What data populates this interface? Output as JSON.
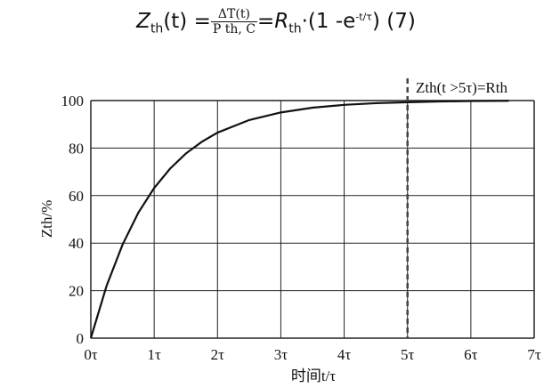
{
  "formula": {
    "lhs": "Z",
    "lhs_sub": "th",
    "lhs_arg": "(t) =",
    "numerator": "ΔT(t)",
    "denominator": "P th, C",
    "rhs": "=R",
    "rhs_sub": "th",
    "rhs_rest": "·(1 -e",
    "exp": "-t/τ",
    "rhs_close": ")",
    "eq_number": "(7)"
  },
  "chart_data": {
    "type": "line",
    "xlabel": "时间t/τ",
    "ylabel": "Zth/%",
    "xlim": [
      0,
      7
    ],
    "ylim": [
      0,
      100
    ],
    "grid": true,
    "x_ticks": [
      "0τ",
      "1τ",
      "2τ",
      "3τ",
      "4τ",
      "5τ",
      "6τ",
      "7τ"
    ],
    "y_ticks": [
      "0",
      "20",
      "40",
      "60",
      "80",
      "100"
    ],
    "series": [
      {
        "x": [
          0,
          0.25,
          0.5,
          0.75,
          1,
          1.25,
          1.5,
          1.75,
          2,
          2.5,
          3,
          3.5,
          4,
          4.5,
          5,
          5.5,
          6,
          6.6
        ],
        "y": [
          0,
          22.1,
          39.3,
          52.8,
          63.2,
          71.3,
          77.7,
          82.6,
          86.5,
          91.8,
          95.0,
          97.0,
          98.2,
          98.9,
          99.3,
          99.6,
          99.8,
          99.9
        ],
        "color": "#111111"
      }
    ],
    "annotation": {
      "x": 5,
      "text": "Zth(t >5τ)=Rth",
      "style": "dashed"
    }
  }
}
